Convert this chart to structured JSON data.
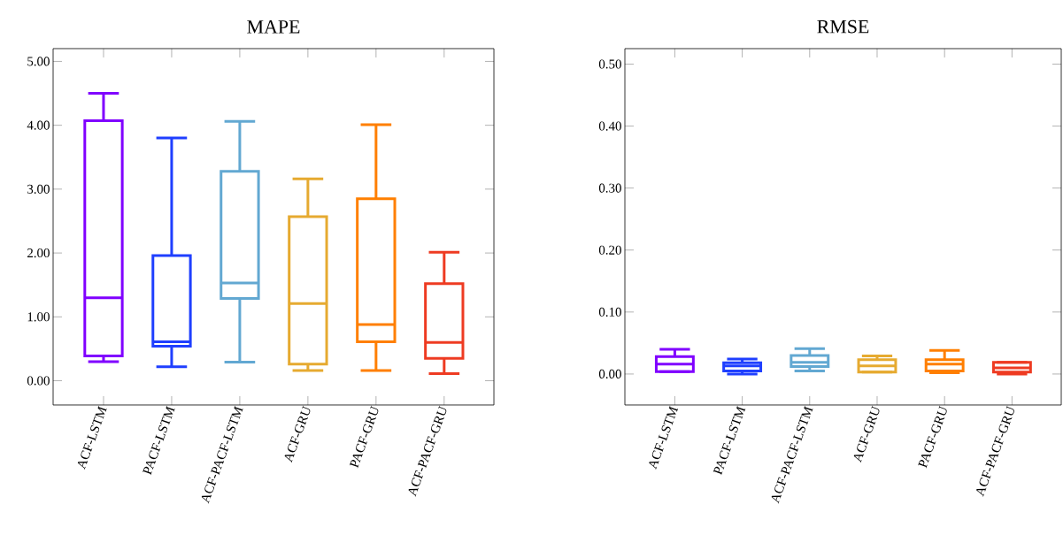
{
  "chart_data": [
    {
      "type": "box",
      "title": "MAPE",
      "categories": [
        "ACF-LSTM",
        "PACF-LSTM",
        "ACF-PACF-LSTM",
        "ACF-GRU",
        "PACF-GRU",
        "ACF-PACF-GRU"
      ],
      "colors": [
        "#8000ff",
        "#1f3fff",
        "#62a8d2",
        "#e6aa30",
        "#ff7f00",
        "#ee3b22"
      ],
      "boxes": [
        {
          "low": 0.3,
          "q1": 0.39,
          "median": 1.3,
          "q3": 4.07,
          "high": 4.5
        },
        {
          "low": 0.22,
          "q1": 0.54,
          "median": 0.61,
          "q3": 1.96,
          "high": 3.8
        },
        {
          "low": 0.29,
          "q1": 1.29,
          "median": 1.53,
          "q3": 3.28,
          "high": 4.06
        },
        {
          "low": 0.16,
          "q1": 0.26,
          "median": 1.21,
          "q3": 2.57,
          "high": 3.16
        },
        {
          "low": 0.16,
          "q1": 0.61,
          "median": 0.88,
          "q3": 2.85,
          "high": 4.01
        },
        {
          "low": 0.11,
          "q1": 0.35,
          "median": 0.6,
          "q3": 1.52,
          "high": 2.01
        }
      ],
      "ylim": [
        -0.38,
        5.2
      ],
      "yticks": [
        {
          "value": 0,
          "label": "0.00"
        },
        {
          "value": 1,
          "label": "1.00"
        },
        {
          "value": 2,
          "label": "2.00"
        },
        {
          "value": 3,
          "label": "3.00"
        },
        {
          "value": 4,
          "label": "4.00"
        },
        {
          "value": 5,
          "label": "5.00"
        }
      ],
      "grid": false
    },
    {
      "type": "box",
      "title": "RMSE",
      "categories": [
        "ACF-LSTM",
        "PACF-LSTM",
        "ACF-PACF-LSTM",
        "ACF-GRU",
        "PACF-GRU",
        "ACF-PACF-GRU"
      ],
      "colors": [
        "#8000ff",
        "#1f3fff",
        "#62a8d2",
        "#e6aa30",
        "#ff7f00",
        "#ee3b22"
      ],
      "boxes": [
        {
          "low": 0.004,
          "q1": 0.004,
          "median": 0.016,
          "q3": 0.028,
          "high": 0.04
        },
        {
          "low": 0.0,
          "q1": 0.005,
          "median": 0.013,
          "q3": 0.018,
          "high": 0.024
        },
        {
          "low": 0.005,
          "q1": 0.012,
          "median": 0.019,
          "q3": 0.03,
          "high": 0.041
        },
        {
          "low": 0.003,
          "q1": 0.003,
          "median": 0.013,
          "q3": 0.023,
          "high": 0.029
        },
        {
          "low": 0.002,
          "q1": 0.005,
          "median": 0.016,
          "q3": 0.023,
          "high": 0.038
        },
        {
          "low": 0.0,
          "q1": 0.003,
          "median": 0.01,
          "q3": 0.019,
          "high": 0.019
        }
      ],
      "ylim": [
        -0.05,
        0.525
      ],
      "yticks": [
        {
          "value": 0,
          "label": "0.00"
        },
        {
          "value": 0.1,
          "label": "0.10"
        },
        {
          "value": 0.2,
          "label": "0.20"
        },
        {
          "value": 0.3,
          "label": "0.30"
        },
        {
          "value": 0.4,
          "label": "0.40"
        },
        {
          "value": 0.5,
          "label": "0.50"
        }
      ],
      "grid": false
    }
  ]
}
